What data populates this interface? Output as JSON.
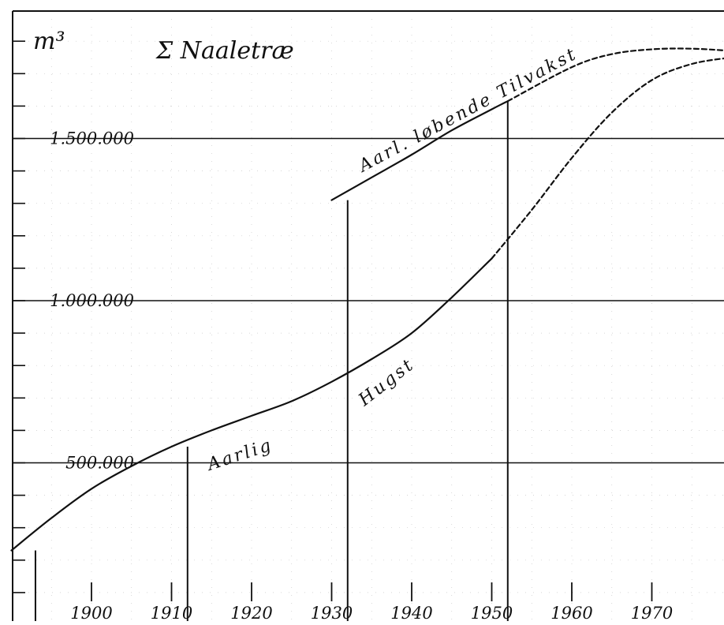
{
  "chart_data": {
    "type": "line",
    "title": "Σ Naaletræ",
    "ylabel": "m³",
    "xlabel": "",
    "xlim": [
      1890,
      1980
    ],
    "ylim": [
      0,
      1850000
    ],
    "x_ticks": [
      1900,
      1910,
      1920,
      1930,
      1940,
      1950,
      1960,
      1970
    ],
    "x_tick_labels": [
      "1900",
      "1910",
      "1920",
      "1930",
      "1940",
      "1950",
      "1960",
      "1970"
    ],
    "y_major_ticks": [
      500000,
      1000000,
      1500000
    ],
    "y_tick_labels": [
      "500.000",
      "1.000.000",
      "1.500.000"
    ],
    "grid": true,
    "series": [
      {
        "name": "Aarlig Hugst",
        "style": "solid",
        "color": "#111111",
        "points": [
          [
            1890,
            230000
          ],
          [
            1895,
            330000
          ],
          [
            1900,
            420000
          ],
          [
            1905,
            490000
          ],
          [
            1910,
            550000
          ],
          [
            1915,
            600000
          ],
          [
            1920,
            645000
          ],
          [
            1925,
            690000
          ],
          [
            1930,
            750000
          ],
          [
            1935,
            820000
          ],
          [
            1940,
            900000
          ],
          [
            1945,
            1010000
          ],
          [
            1950,
            1130000
          ]
        ]
      },
      {
        "name": "Aarlig Hugst (projected)",
        "style": "dashed",
        "color": "#111111",
        "points": [
          [
            1950,
            1130000
          ],
          [
            1955,
            1280000
          ],
          [
            1960,
            1440000
          ],
          [
            1965,
            1580000
          ],
          [
            1970,
            1680000
          ],
          [
            1975,
            1730000
          ],
          [
            1980,
            1750000
          ]
        ]
      },
      {
        "name": "Aarl. løbende Tilvækst",
        "style": "solid",
        "color": "#111111",
        "points": [
          [
            1930,
            1310000
          ],
          [
            1935,
            1380000
          ],
          [
            1940,
            1450000
          ],
          [
            1945,
            1525000
          ],
          [
            1950,
            1590000
          ],
          [
            1952,
            1615000
          ]
        ]
      },
      {
        "name": "Aarl. løbende Tilvækst (projected)",
        "style": "dashed",
        "color": "#111111",
        "points": [
          [
            1952,
            1615000
          ],
          [
            1960,
            1720000
          ],
          [
            1965,
            1760000
          ],
          [
            1970,
            1775000
          ],
          [
            1975,
            1777000
          ],
          [
            1980,
            1770000
          ]
        ]
      }
    ],
    "vertical_markers": [
      {
        "x": 1893,
        "y": 230000
      },
      {
        "x": 1912,
        "y": 550000
      },
      {
        "x": 1932,
        "y": 1310000
      },
      {
        "x": 1952,
        "y": 1615000
      }
    ],
    "annotations": [
      {
        "text": "Aarlig"
      },
      {
        "text": "Hugst"
      },
      {
        "text": "Aarl. løbende Tilvakst"
      }
    ]
  }
}
